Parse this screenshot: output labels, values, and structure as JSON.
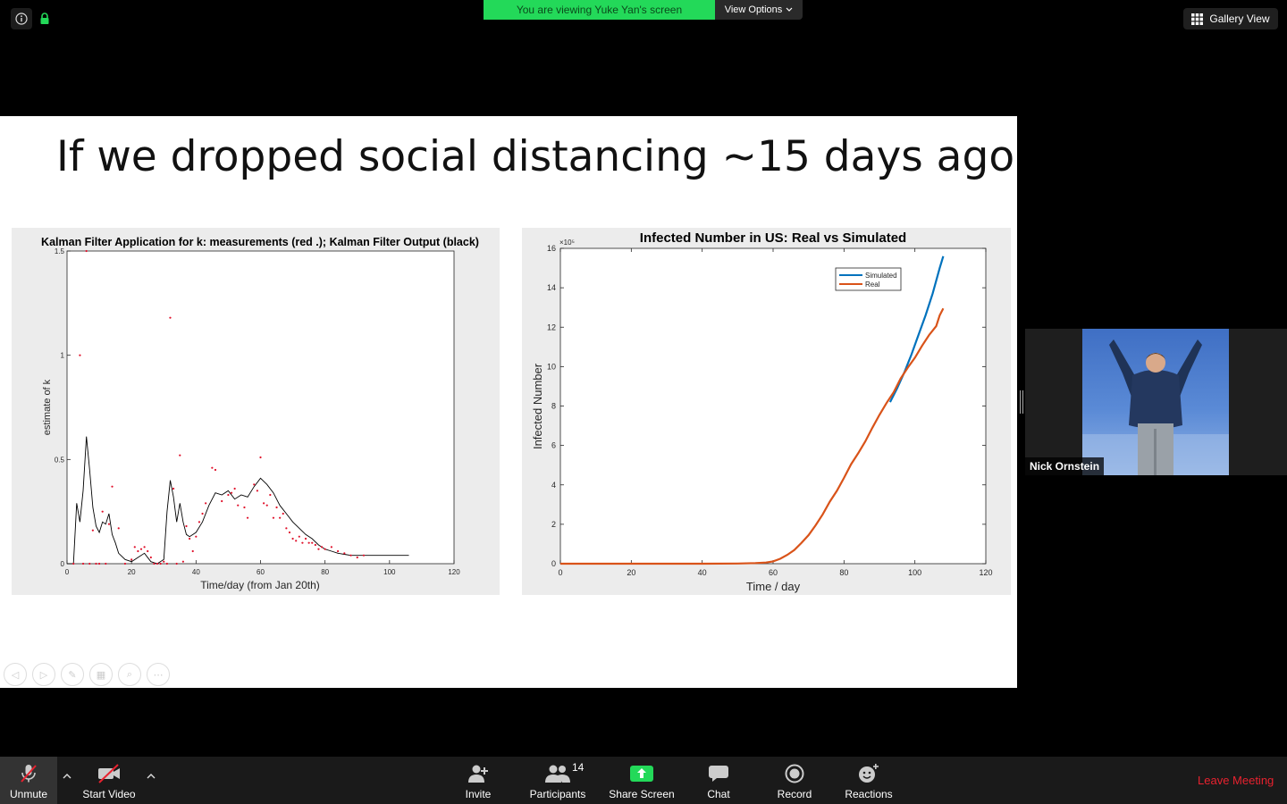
{
  "window": {
    "share_banner": "You are viewing Yuke Yan's screen",
    "view_options": "View Options",
    "gallery_view": "Gallery View"
  },
  "icons": {
    "info": "info-icon",
    "lock": "lock-icon",
    "gallery": "grid-icon",
    "chevron": "chevron-down-icon"
  },
  "slide": {
    "title": "If we dropped social distancing ~15 days ago"
  },
  "left_chart": {
    "type": "line",
    "title": "Kalman Filter Application for k: measurements (red .); Kalman Filter Output (black)",
    "xlabel": "Time/day  (from Jan 20th)",
    "ylabel": "estimate of k",
    "xlim": [
      0,
      120
    ],
    "ylim": [
      0,
      1.5
    ],
    "xticks": [
      "0",
      "20",
      "40",
      "60",
      "80",
      "100",
      "120"
    ],
    "yticks": [
      "0",
      "0.5",
      "1",
      "1.5"
    ],
    "colors": {
      "measurements": "#e0102a",
      "filter": "#000000"
    },
    "chart_data": {
      "type": "line",
      "series": [
        {
          "style": "line",
          "x": [
            0,
            2,
            3,
            4,
            5,
            6,
            7,
            8,
            9,
            10,
            11,
            12,
            13,
            14,
            15,
            16,
            18,
            20,
            22,
            24,
            26,
            28,
            30,
            31,
            32,
            33,
            34,
            35,
            36,
            37,
            38,
            40,
            42,
            44,
            46,
            48,
            50,
            52,
            54,
            56,
            58,
            60,
            62,
            64,
            66,
            68,
            70,
            72,
            74,
            76,
            78,
            80,
            82,
            84,
            86,
            88,
            90,
            92,
            94,
            96,
            98,
            100,
            102,
            104,
            106
          ],
          "y": [
            0,
            0,
            0.29,
            0.2,
            0.35,
            0.61,
            0.45,
            0.27,
            0.18,
            0.15,
            0.2,
            0.19,
            0.24,
            0.14,
            0.1,
            0.05,
            0.02,
            0.01,
            0.03,
            0.05,
            0.01,
            0,
            0.02,
            0.25,
            0.4,
            0.32,
            0.2,
            0.29,
            0.2,
            0.14,
            0.13,
            0.15,
            0.2,
            0.28,
            0.34,
            0.33,
            0.35,
            0.31,
            0.33,
            0.32,
            0.37,
            0.41,
            0.38,
            0.34,
            0.28,
            0.24,
            0.2,
            0.17,
            0.14,
            0.12,
            0.09,
            0.07,
            0.06,
            0.05,
            0.045,
            0.04,
            0.04,
            0.04,
            0.04,
            0.04,
            0.04,
            0.04,
            0.04,
            0.04,
            0.04
          ]
        },
        {
          "style": "points",
          "x": [
            2,
            4,
            5,
            6,
            7,
            8,
            9,
            10,
            11,
            12,
            13,
            14,
            16,
            18,
            20,
            21,
            22,
            23,
            24,
            25,
            26,
            27,
            28,
            29,
            30,
            31,
            32,
            33,
            34,
            35,
            36,
            37,
            38,
            39,
            40,
            41,
            42,
            43,
            45,
            46,
            48,
            50,
            51,
            52,
            53,
            55,
            56,
            58,
            59,
            60,
            61,
            62,
            63,
            64,
            65,
            66,
            67,
            68,
            69,
            70,
            71,
            72,
            73,
            74,
            75,
            76,
            77,
            78,
            79,
            80,
            82,
            84,
            86,
            88,
            90,
            92
          ],
          "y": [
            0,
            1.0,
            0,
            1.5,
            0,
            0.16,
            0,
            0,
            0.25,
            0,
            0.19,
            0.37,
            0.17,
            0,
            0.02,
            0.08,
            0.06,
            0.07,
            0.08,
            0.06,
            0.03,
            0,
            0,
            0,
            0.01,
            0,
            1.18,
            0.36,
            0,
            0.52,
            0.01,
            0.18,
            0.12,
            0.06,
            0.13,
            0.2,
            0.24,
            0.29,
            0.46,
            0.45,
            0.3,
            0.33,
            0.34,
            0.36,
            0.28,
            0.27,
            0.22,
            0.38,
            0.35,
            0.51,
            0.29,
            0.28,
            0.33,
            0.22,
            0.27,
            0.22,
            0.24,
            0.17,
            0.15,
            0.12,
            0.11,
            0.13,
            0.1,
            0.12,
            0.1,
            0.1,
            0.09,
            0.07,
            0.08,
            0.07,
            0.08,
            0.06,
            0.05,
            0.04,
            0.03,
            0.04
          ]
        }
      ]
    }
  },
  "right_chart": {
    "type": "line",
    "title": "Infected Number in US: Real vs Simulated",
    "xlabel": "Time / day",
    "ylabel": "Infected Number",
    "multiplier": "×10⁵",
    "xlim": [
      0,
      120
    ],
    "ylim": [
      0,
      16
    ],
    "xticks": [
      "0",
      "20",
      "40",
      "60",
      "80",
      "100",
      "120"
    ],
    "yticks": [
      "0",
      "2",
      "4",
      "6",
      "8",
      "10",
      "12",
      "14",
      "16"
    ],
    "legend": {
      "position": "top-right",
      "entries": [
        "Simulated",
        "Real"
      ]
    },
    "colors": {
      "simulated": "#0072bd",
      "real": "#d95319"
    },
    "chart_data": {
      "type": "line",
      "series": [
        {
          "name": "Simulated",
          "x": [
            93,
            95,
            97,
            99,
            101,
            103,
            105,
            107,
            108
          ],
          "y": [
            8.2,
            8.9,
            9.7,
            10.6,
            11.6,
            12.6,
            13.7,
            15.0,
            15.6
          ]
        },
        {
          "name": "Real",
          "x": [
            0,
            10,
            20,
            30,
            40,
            50,
            55,
            58,
            60,
            62,
            64,
            66,
            68,
            70,
            72,
            74,
            76,
            78,
            80,
            82,
            84,
            86,
            88,
            90,
            92,
            94,
            96,
            98,
            100,
            102,
            104,
            106,
            107,
            108
          ],
          "y": [
            0,
            0,
            0,
            0,
            0,
            0.01,
            0.03,
            0.06,
            0.12,
            0.25,
            0.45,
            0.7,
            1.05,
            1.45,
            1.95,
            2.5,
            3.15,
            3.7,
            4.35,
            5.05,
            5.6,
            6.2,
            6.9,
            7.55,
            8.15,
            8.7,
            9.4,
            9.95,
            10.45,
            11.05,
            11.6,
            12.05,
            12.6,
            12.95
          ]
        }
      ]
    }
  },
  "participant": {
    "name": "Nick Ornstein"
  },
  "toolbar": {
    "unmute": "Unmute",
    "start_video": "Start Video",
    "invite": "Invite",
    "participants": "Participants",
    "participants_count": "14",
    "share_screen": "Share Screen",
    "chat": "Chat",
    "record": "Record",
    "reactions": "Reactions",
    "leave": "Leave Meeting"
  }
}
